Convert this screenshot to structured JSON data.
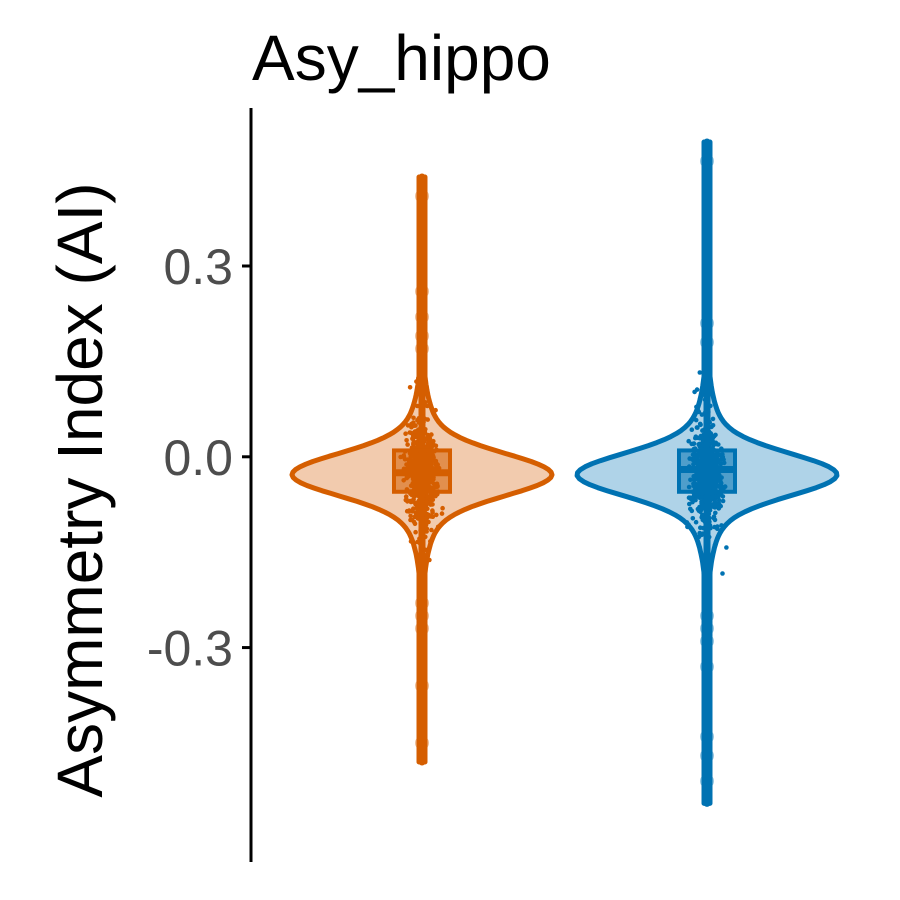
{
  "chart_data": {
    "type": "violin",
    "title": "Asy_hippo",
    "xlabel": "",
    "ylabel": "Asymmetry Index (AI)",
    "ylim": [
      -0.59,
      0.495
    ],
    "yticks": [
      {
        "value": 0.3,
        "label": "0.3"
      },
      {
        "value": 0.0,
        "label": "0.0"
      },
      {
        "value": -0.3,
        "label": "-0.3"
      }
    ],
    "grid": false,
    "series": [
      {
        "color": "#d55e00",
        "fill": "#f2cbae",
        "min": -0.48,
        "max": 0.44,
        "q1": -0.055,
        "median": -0.025,
        "q3": 0.01,
        "whisker_low": -0.14,
        "whisker_high": 0.065,
        "outliers": [
          0.41,
          0.26,
          0.22,
          0.19,
          0.17,
          -0.23,
          -0.25,
          -0.27,
          -0.36,
          -0.45
        ]
      },
      {
        "color": "#0072b2",
        "fill": "#afd3e8",
        "min": -0.545,
        "max": 0.495,
        "q1": -0.055,
        "median": -0.02,
        "q3": 0.01,
        "whisker_low": -0.15,
        "whisker_high": 0.07,
        "outliers": [
          0.465,
          0.21,
          0.18,
          -0.25,
          -0.27,
          -0.29,
          -0.33,
          -0.44,
          -0.47,
          -0.51
        ]
      }
    ]
  }
}
